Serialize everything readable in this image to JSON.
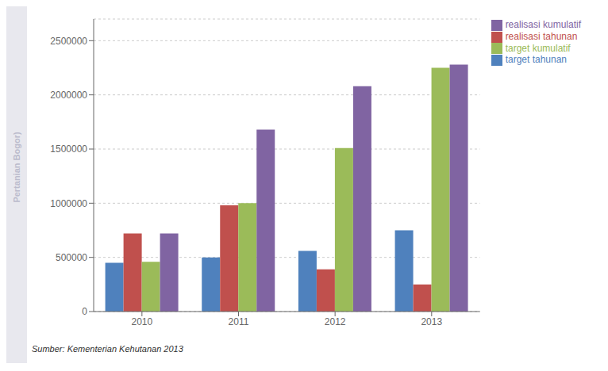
{
  "chart_data": {
    "type": "bar",
    "categories": [
      "2010",
      "2011",
      "2012",
      "2013"
    ],
    "series": [
      {
        "name": "target tahunan",
        "color": "#4F81BD",
        "values": [
          450000,
          500000,
          560000,
          750000
        ]
      },
      {
        "name": "realisasi tahunan",
        "color": "#C0504D",
        "values": [
          720000,
          980000,
          390000,
          250000
        ]
      },
      {
        "name": "target kumulatif",
        "color": "#9BBB59",
        "values": [
          460000,
          1000000,
          1510000,
          2250000
        ]
      },
      {
        "name": "realisasi kumulatif",
        "color": "#8064A2",
        "values": [
          720000,
          1680000,
          2080000,
          2280000
        ]
      }
    ],
    "ylim": [
      0,
      2700000
    ],
    "yticks": [
      0,
      500000,
      1000000,
      1500000,
      2000000,
      2500000
    ],
    "grid": true,
    "legend": "upper right",
    "annotations": [
      "Pertanian Bogor)",
      "Sumber: Kementerian Kehutanan 2013"
    ]
  }
}
